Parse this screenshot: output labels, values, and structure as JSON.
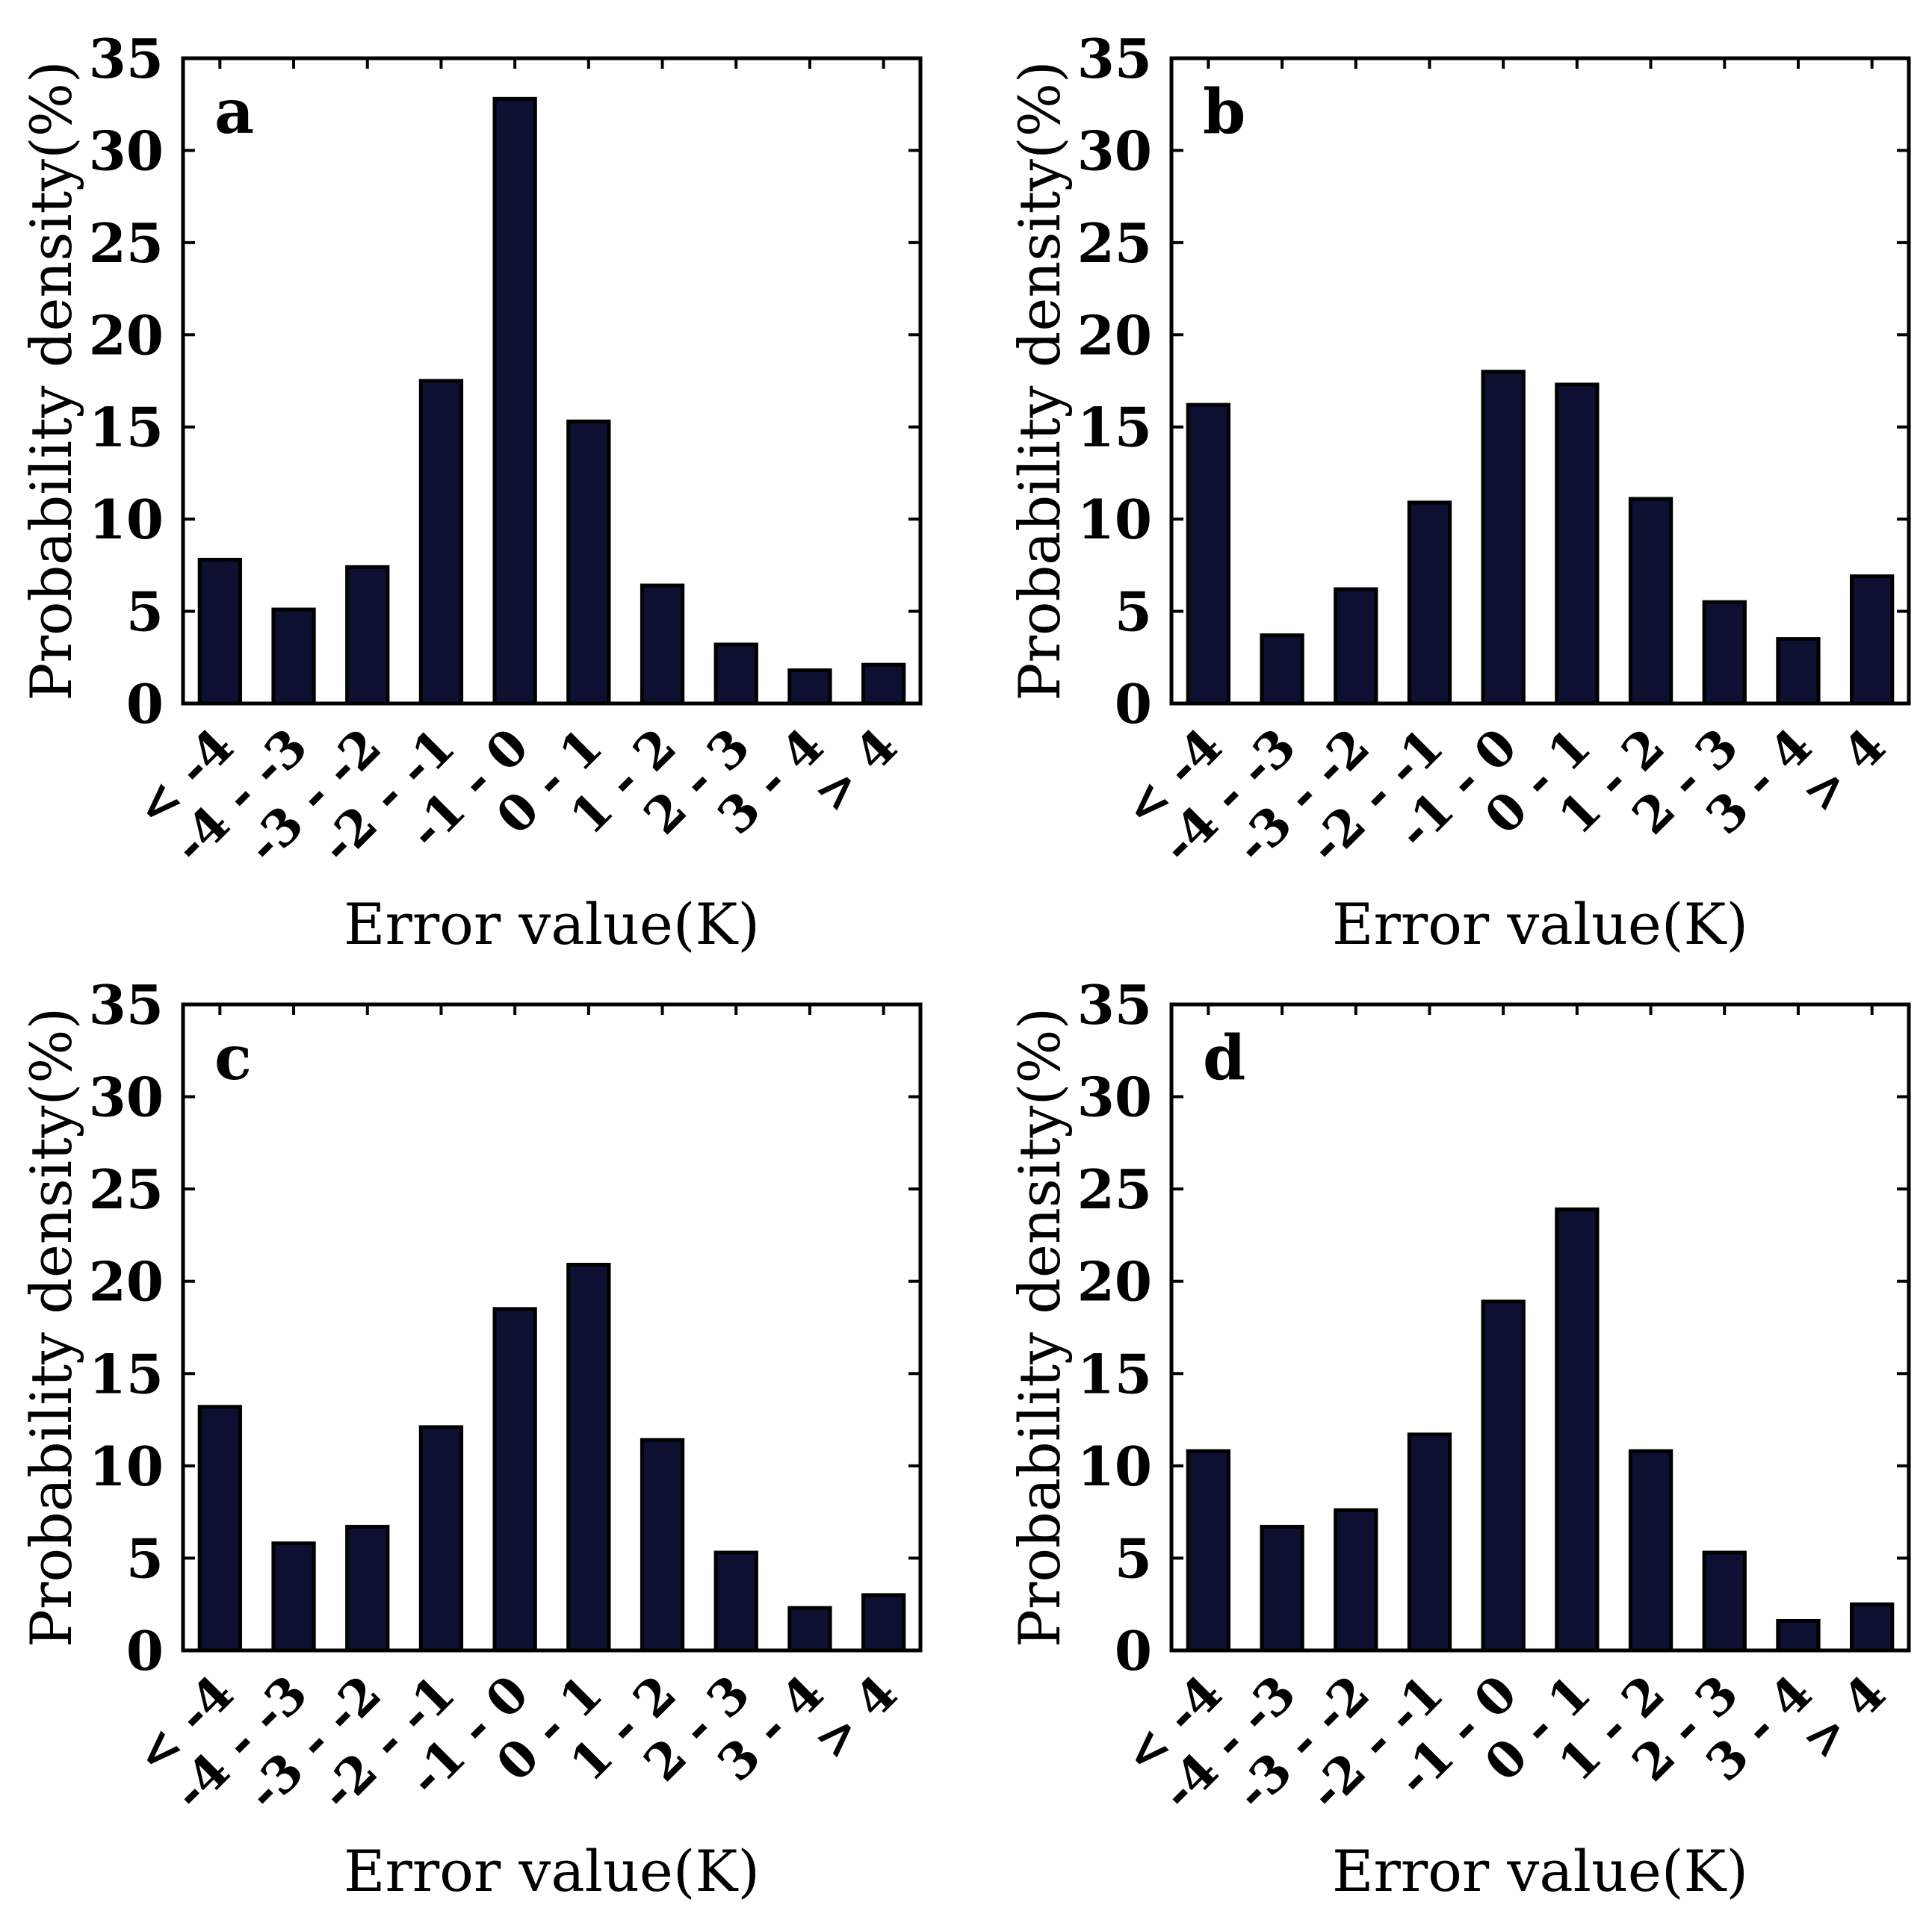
{
  "chart_data": [
    {
      "type": "bar",
      "panel_label": "a",
      "categories": [
        "< -4",
        "-4 - -3",
        "-3 - -2",
        "-2 - -1",
        "-1 - 0",
        "0 - 1",
        "1 - 2",
        "2 - 3",
        "3 - 4",
        "> 4"
      ],
      "values": [
        7.8,
        5.1,
        7.4,
        17.5,
        32.8,
        15.3,
        6.4,
        3.2,
        1.8,
        2.1
      ],
      "xlabel": "Error value(K)",
      "ylabel": "Probability density(%)",
      "ylim": [
        0,
        35
      ],
      "yticks": [
        0,
        5,
        10,
        15,
        20,
        25,
        30,
        35
      ],
      "bar_color": "#0d1030"
    },
    {
      "type": "bar",
      "panel_label": "b",
      "categories": [
        "< -4",
        "-4 - -3",
        "-3 - -2",
        "-2 - -1",
        "-1 - 0",
        "0 - 1",
        "1 - 2",
        "2 - 3",
        "3 - 4",
        "> 4"
      ],
      "values": [
        16.2,
        3.7,
        6.2,
        10.9,
        18.0,
        17.3,
        11.1,
        5.5,
        3.5,
        6.9
      ],
      "xlabel": "Error value(K)",
      "ylabel": "Probability density(%)",
      "ylim": [
        0,
        35
      ],
      "yticks": [
        0,
        5,
        10,
        15,
        20,
        25,
        30,
        35
      ],
      "bar_color": "#0d1030"
    },
    {
      "type": "bar",
      "panel_label": "c",
      "categories": [
        "< -4",
        "-4 - -3",
        "-3 - -2",
        "-2 - -1",
        "-1 - 0",
        "0 - 1",
        "1 - 2",
        "2 - 3",
        "3 - 4",
        "> 4"
      ],
      "values": [
        13.2,
        5.8,
        6.7,
        12.1,
        18.5,
        20.9,
        11.4,
        5.3,
        2.3,
        3.0
      ],
      "xlabel": "Error value(K)",
      "ylabel": "Probability density(%)",
      "ylim": [
        0,
        35
      ],
      "yticks": [
        0,
        5,
        10,
        15,
        20,
        25,
        30,
        35
      ],
      "bar_color": "#0d1030"
    },
    {
      "type": "bar",
      "panel_label": "d",
      "categories": [
        "< -4",
        "-4 - -3",
        "-3 - -2",
        "-2 - -1",
        "-1 - 0",
        "0 - 1",
        "1 - 2",
        "2 - 3",
        "3 - 4",
        "> 4"
      ],
      "values": [
        10.8,
        6.7,
        7.6,
        11.7,
        18.9,
        23.9,
        10.8,
        5.3,
        1.6,
        2.5
      ],
      "xlabel": "Error value(K)",
      "ylabel": "Probability density(%)",
      "ylim": [
        0,
        35
      ],
      "yticks": [
        0,
        5,
        10,
        15,
        20,
        25,
        30,
        35
      ],
      "bar_color": "#0d1030"
    }
  ]
}
